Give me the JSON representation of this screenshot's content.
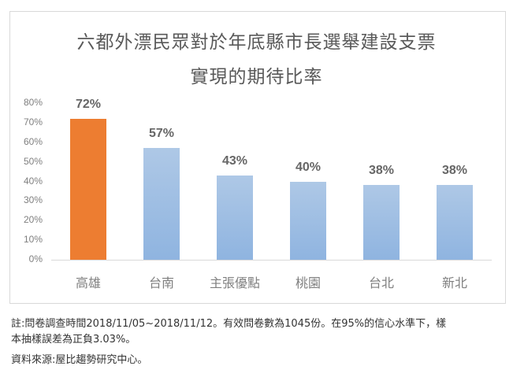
{
  "chart_data": {
    "type": "bar",
    "title": "六都外漂民眾對於年底縣市長選舉建設支票實現的期待比率",
    "title_lines": [
      "六都外漂民眾對於年底縣市長選舉建設支票",
      "實現的期待比率"
    ],
    "categories": [
      "高雄",
      "台南",
      "主張優點",
      "桃園",
      "台北",
      "新北"
    ],
    "values": [
      72,
      57,
      43,
      40,
      38,
      38
    ],
    "value_labels": [
      "72%",
      "57%",
      "43%",
      "40%",
      "38%",
      "38%"
    ],
    "xlabel": "",
    "ylabel": "",
    "ylim": [
      0,
      80
    ],
    "yticks": [
      "0%",
      "10%",
      "20%",
      "30%",
      "40%",
      "50%",
      "60%",
      "70%",
      "80%"
    ],
    "grid": false,
    "legend": null,
    "colors": {
      "highlight": "#ed7d31",
      "normal": "#9dbde3"
    },
    "highlight_index": 0
  },
  "notes": {
    "line1": "註:問卷調查時間2018/11/05~2018/11/12。有效問卷數為1045份。在95%的信心水準下，樣",
    "line2": "本抽樣誤差為正負3.03%。",
    "source": "資料來源:屋比趨勢研究中心。"
  }
}
